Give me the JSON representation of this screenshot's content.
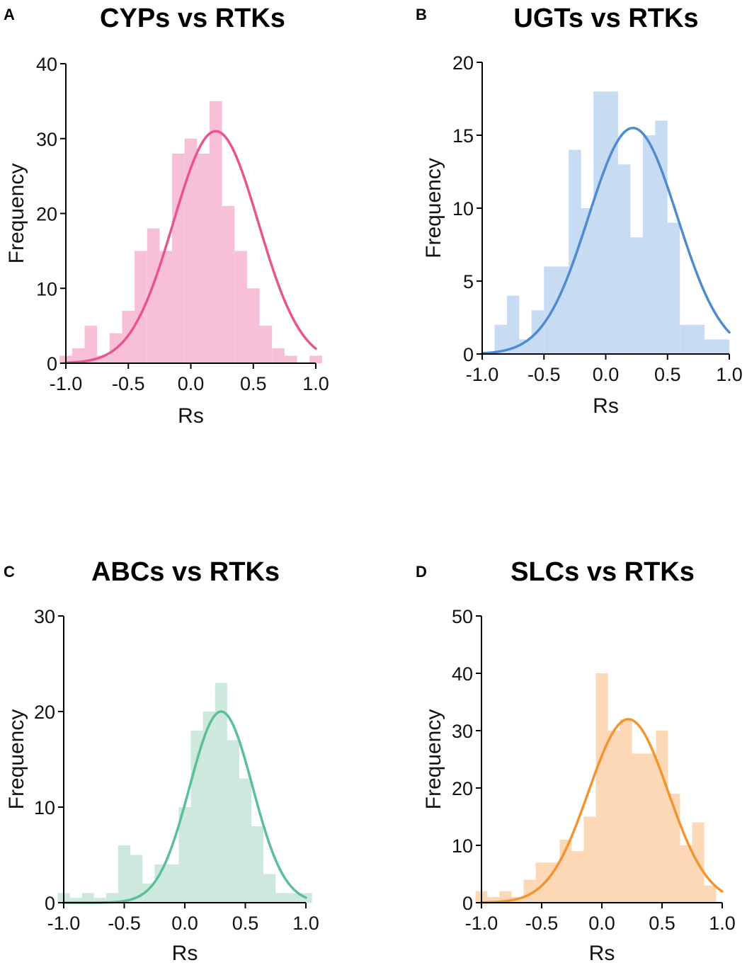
{
  "chart_data": [
    {
      "type": "bar",
      "panel": "A",
      "title": "CYPs vs RTKs",
      "xlabel": "Rs",
      "ylabel": "Frequency",
      "xlim": [
        -1.0,
        1.0
      ],
      "ylim": [
        0,
        40
      ],
      "xticks": [
        "-1.0",
        "-0.5",
        "0.0",
        "0.5",
        "1.0"
      ],
      "yticks": [
        "0",
        "10",
        "20",
        "30",
        "40"
      ],
      "bar_color": "#f7c0d6",
      "fit_color": "#e8558e",
      "bins": [
        -1.0,
        -0.9,
        -0.8,
        -0.7,
        -0.6,
        -0.5,
        -0.4,
        -0.3,
        -0.2,
        -0.1,
        0.0,
        0.1,
        0.2,
        0.3,
        0.4,
        0.5,
        0.6,
        0.7,
        0.8,
        0.9,
        1.0
      ],
      "values": [
        1,
        2,
        5,
        1,
        4,
        7,
        15,
        18,
        15,
        28,
        30,
        28,
        35,
        21,
        15,
        10,
        5,
        2,
        1,
        0,
        1
      ],
      "fit": {
        "mean": 0.2,
        "sd": 0.34,
        "peak": 31
      }
    },
    {
      "type": "bar",
      "panel": "B",
      "title": "UGTs vs RTKs",
      "xlabel": "Rs",
      "ylabel": "Frequency",
      "xlim": [
        -1.0,
        1.0
      ],
      "ylim": [
        0,
        20
      ],
      "xticks": [
        "-1.0",
        "-0.5",
        "0.0",
        "0.5",
        "1.0"
      ],
      "yticks": [
        "0",
        "5",
        "10",
        "15",
        "20"
      ],
      "bar_color": "#c7dcf3",
      "fit_color": "#4f8ccf",
      "bins": [
        -0.95,
        -0.85,
        -0.75,
        -0.65,
        -0.55,
        -0.45,
        -0.35,
        -0.25,
        -0.15,
        -0.05,
        0.05,
        0.15,
        0.25,
        0.35,
        0.45,
        0.55,
        0.65,
        0.75,
        0.85,
        0.95
      ],
      "values": [
        0,
        2,
        4,
        1,
        3,
        6,
        6,
        14,
        10,
        18,
        18,
        13,
        8,
        15,
        16,
        9,
        2,
        2,
        1,
        1
      ],
      "fit": {
        "mean": 0.22,
        "sd": 0.36,
        "peak": 15.5
      }
    },
    {
      "type": "bar",
      "panel": "C",
      "title": "ABCs vs RTKs",
      "xlabel": "Rs",
      "ylabel": "Frequency",
      "xlim": [
        -1.0,
        1.0
      ],
      "ylim": [
        0,
        30
      ],
      "xticks": [
        "-1.0",
        "-0.5",
        "0.0",
        "0.5",
        "1.0"
      ],
      "yticks": [
        "0",
        "10",
        "20",
        "30"
      ],
      "bar_color": "#cde8dd",
      "fit_color": "#5bbf97",
      "bins": [
        -1.0,
        -0.9,
        -0.8,
        -0.7,
        -0.6,
        -0.5,
        -0.4,
        -0.3,
        -0.2,
        -0.1,
        0.0,
        0.1,
        0.2,
        0.3,
        0.4,
        0.5,
        0.6,
        0.7,
        0.8,
        0.9,
        1.0
      ],
      "values": [
        1,
        0.5,
        1,
        0.5,
        1,
        6,
        5,
        2,
        4,
        4,
        10,
        18,
        20,
        23,
        17,
        13,
        8,
        3,
        1,
        1,
        1
      ],
      "fit": {
        "mean": 0.3,
        "sd": 0.26,
        "peak": 20
      }
    },
    {
      "type": "bar",
      "panel": "D",
      "title": "SLCs vs RTKs",
      "xlabel": "Rs",
      "ylabel": "Frequency",
      "xlim": [
        -1.0,
        1.0
      ],
      "ylim": [
        0,
        50
      ],
      "xticks": [
        "-1.0",
        "-0.5",
        "0.0",
        "0.5",
        "1.0"
      ],
      "yticks": [
        "0",
        "10",
        "20",
        "30",
        "40",
        "50"
      ],
      "bar_color": "#fcd8b6",
      "fit_color": "#f0952f",
      "bins": [
        -1.0,
        -0.9,
        -0.8,
        -0.7,
        -0.6,
        -0.5,
        -0.4,
        -0.3,
        -0.2,
        -0.1,
        0.0,
        0.1,
        0.2,
        0.3,
        0.4,
        0.5,
        0.6,
        0.7,
        0.8,
        0.9,
        1.0
      ],
      "values": [
        2,
        1,
        2,
        1,
        4,
        7,
        7,
        11,
        9,
        15,
        40,
        30,
        32,
        26,
        26,
        30,
        19,
        10,
        14,
        3,
        0
      ],
      "fit": {
        "mean": 0.22,
        "sd": 0.33,
        "peak": 32
      }
    }
  ]
}
